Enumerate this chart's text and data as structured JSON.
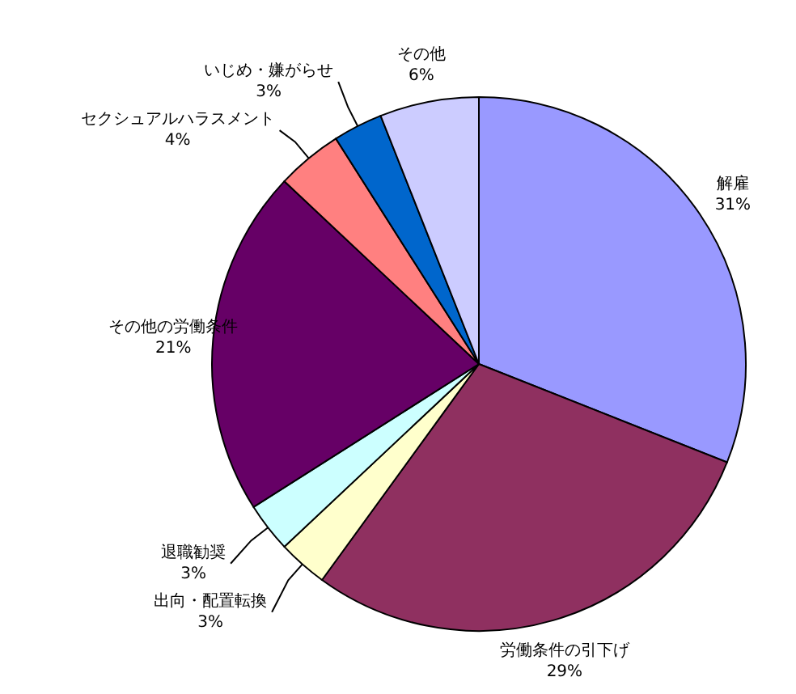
{
  "chart_data": {
    "type": "pie",
    "categories": [
      "解雇",
      "労働条件の引下げ",
      "出向・配置転換",
      "退職勧奨",
      "その他の労働条件",
      "セクシュアルハラスメント",
      "いじめ・嫌がらせ",
      "その他"
    ],
    "values": [
      31,
      29,
      3,
      3,
      21,
      4,
      3,
      6
    ],
    "colors": [
      "#9999ff",
      "#8f3060",
      "#ffffcc",
      "#ccffff",
      "#660066",
      "#ff8080",
      "#0066cc",
      "#ccccff"
    ],
    "value_labels": [
      "31%",
      "29%",
      "3%",
      "3%",
      "21%",
      "4%",
      "3%",
      "6%"
    ],
    "legend": false
  }
}
